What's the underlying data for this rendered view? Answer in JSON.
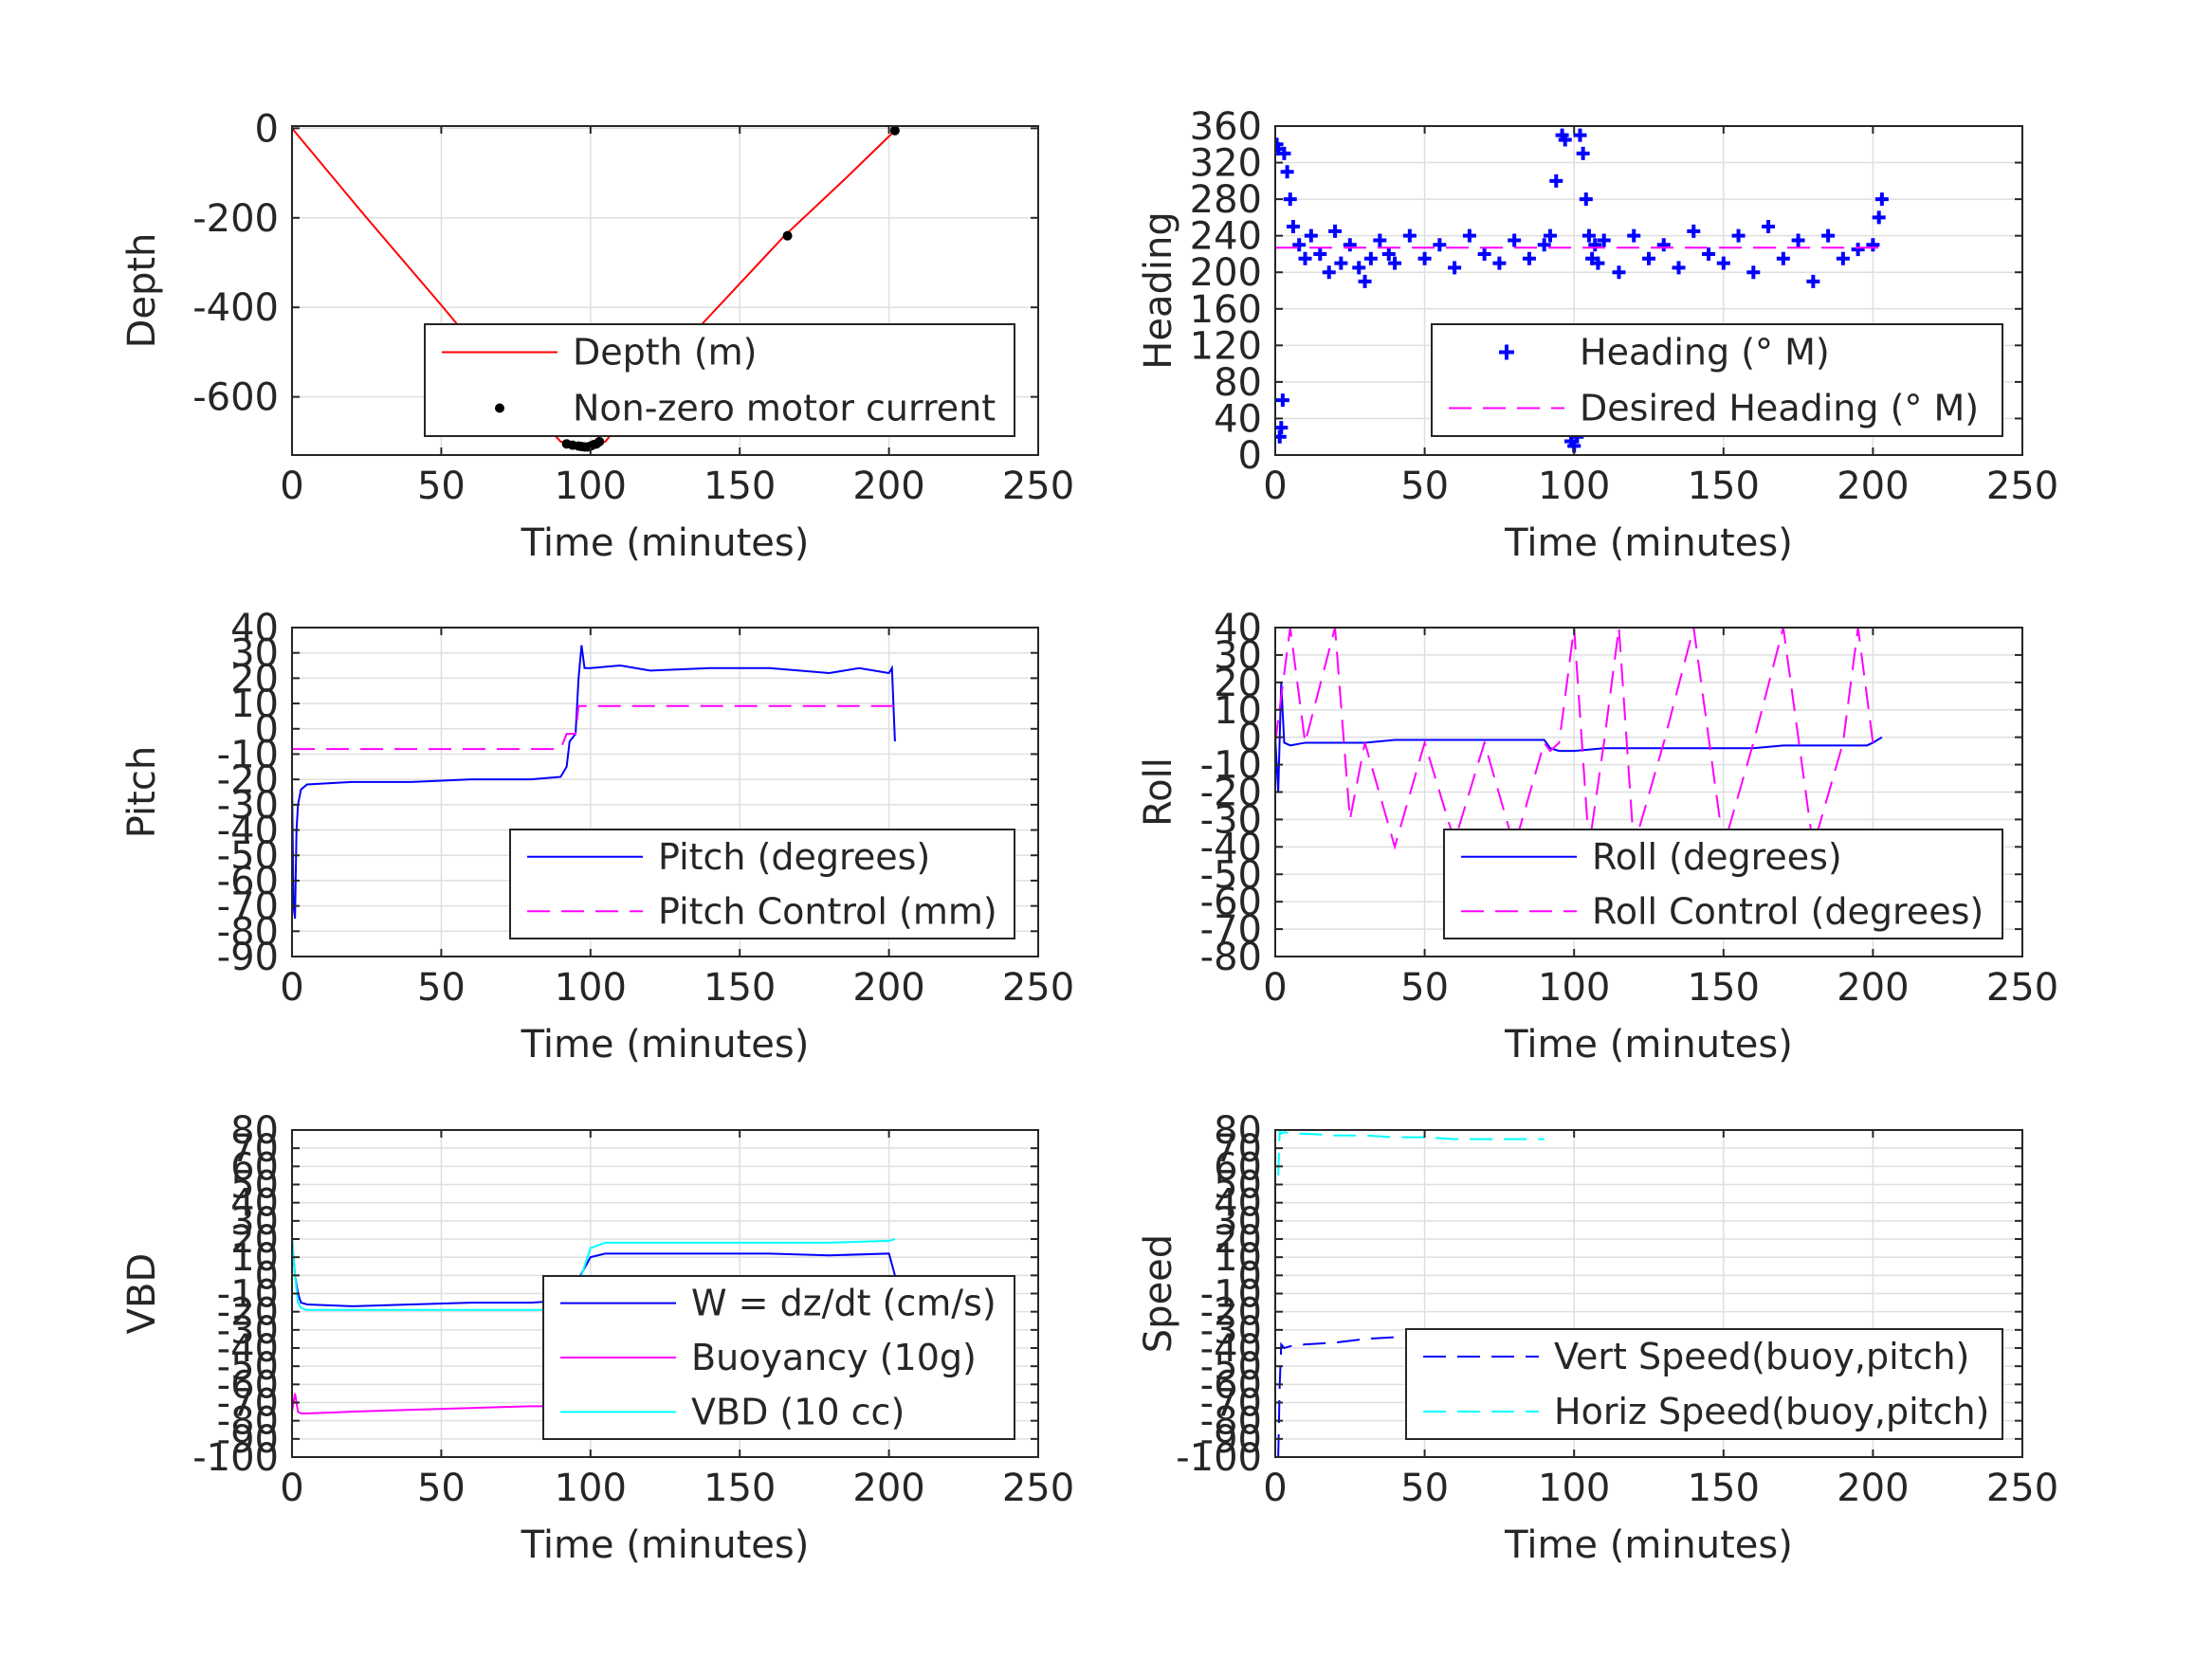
{
  "figure": {
    "background": "#ffffff",
    "axis_color": "#262626",
    "grid_color": "#dfdfdf"
  },
  "chart_data": [
    {
      "id": "depth",
      "type": "line",
      "xlabel": "Time (minutes)",
      "ylabel": "Depth",
      "xlim": [
        0,
        250
      ],
      "ylim": [
        -730,
        5
      ],
      "xticks": [
        0,
        50,
        100,
        150,
        200,
        250
      ],
      "yticks": [
        0,
        -200,
        -400,
        -600
      ],
      "legend_location": "bottom-right",
      "series": [
        {
          "name": "Depth (m)",
          "color": "#ff0000",
          "style": "solid",
          "x": [
            0,
            25,
            50,
            70,
            90,
            95,
            100,
            105,
            130,
            165,
            185,
            202
          ],
          "y": [
            0,
            -200,
            -395,
            -555,
            -700,
            -710,
            -712,
            -700,
            -490,
            -240,
            -115,
            -5
          ]
        },
        {
          "name": "Non-zero motor current",
          "color": "#000000",
          "style": "dots",
          "x": [
            92,
            94,
            96,
            97,
            98,
            99,
            100,
            101,
            102,
            103,
            166,
            202
          ],
          "y": [
            -705,
            -708,
            -710,
            -711,
            -712,
            -712,
            -710,
            -707,
            -705,
            -700,
            -240,
            -5
          ]
        }
      ]
    },
    {
      "id": "heading",
      "type": "scatter",
      "xlabel": "Time (minutes)",
      "ylabel": "Heading",
      "xlim": [
        0,
        250
      ],
      "ylim": [
        0,
        360
      ],
      "xticks": [
        0,
        50,
        100,
        150,
        200,
        250
      ],
      "yticks": [
        0,
        40,
        80,
        120,
        160,
        200,
        240,
        280,
        320,
        360
      ],
      "legend_location": "bottom-right",
      "series": [
        {
          "name": "Heading (° M)",
          "color": "#0000ff",
          "style": "plus",
          "x": [
            0.5,
            1,
            1.5,
            2,
            2.5,
            3,
            4,
            5,
            6,
            8,
            10,
            12,
            15,
            18,
            20,
            22,
            25,
            28,
            30,
            32,
            35,
            38,
            40,
            45,
            50,
            55,
            60,
            65,
            70,
            75,
            80,
            85,
            90,
            92,
            94,
            96,
            97,
            98,
            99,
            100,
            101,
            102,
            103,
            104,
            105,
            106,
            107,
            108,
            110,
            115,
            120,
            125,
            130,
            135,
            140,
            145,
            150,
            155,
            160,
            165,
            170,
            175,
            180,
            185,
            190,
            195,
            200,
            202,
            203
          ],
          "y": [
            340,
            335,
            20,
            30,
            60,
            330,
            310,
            280,
            250,
            230,
            215,
            240,
            220,
            200,
            245,
            210,
            230,
            205,
            190,
            215,
            235,
            220,
            210,
            240,
            215,
            230,
            205,
            240,
            220,
            210,
            235,
            215,
            230,
            240,
            300,
            350,
            345,
            30,
            15,
            10,
            20,
            350,
            330,
            280,
            240,
            215,
            230,
            210,
            235,
            200,
            240,
            215,
            230,
            205,
            245,
            220,
            210,
            240,
            200,
            250,
            215,
            235,
            190,
            240,
            215,
            225,
            230,
            260,
            280
          ]
        },
        {
          "name": "Desired Heading (° M)",
          "color": "#ff00ff",
          "style": "dashed",
          "x": [
            0,
            203
          ],
          "y": [
            227,
            227
          ]
        }
      ]
    },
    {
      "id": "pitch",
      "type": "line",
      "xlabel": "Time (minutes)",
      "ylabel": "Pitch",
      "xlim": [
        0,
        250
      ],
      "ylim": [
        -90,
        40
      ],
      "xticks": [
        0,
        50,
        100,
        150,
        200,
        250
      ],
      "yticks": [
        40,
        30,
        20,
        10,
        0,
        -10,
        -20,
        -30,
        -40,
        -50,
        -60,
        -70,
        -80,
        -90
      ],
      "legend_location": "bottom-right",
      "series": [
        {
          "name": "Pitch (degrees)",
          "color": "#0000ff",
          "style": "solid",
          "x": [
            0,
            0.5,
            1,
            1.5,
            2,
            3,
            5,
            20,
            40,
            60,
            80,
            90,
            92,
            93,
            95,
            96,
            97,
            98,
            100,
            110,
            120,
            140,
            160,
            180,
            190,
            200,
            201,
            202
          ],
          "y": [
            -20,
            -70,
            -75,
            -40,
            -30,
            -24,
            -22,
            -21,
            -21,
            -20,
            -20,
            -19,
            -15,
            -5,
            -2,
            20,
            33,
            24,
            24,
            25,
            23,
            24,
            24,
            22,
            24,
            22,
            24,
            -5
          ]
        },
        {
          "name": "Pitch Control (mm)",
          "color": "#ff00ff",
          "style": "dashed",
          "x": [
            0,
            90,
            92,
            95,
            96,
            200,
            202
          ],
          "y": [
            -8,
            -8,
            -2,
            -2,
            9,
            9,
            9
          ]
        }
      ]
    },
    {
      "id": "roll",
      "type": "line",
      "xlabel": "Time (minutes)",
      "ylabel": "Roll",
      "xlim": [
        0,
        250
      ],
      "ylim": [
        -80,
        40
      ],
      "xticks": [
        0,
        50,
        100,
        150,
        200,
        250
      ],
      "yticks": [
        40,
        30,
        20,
        10,
        0,
        -10,
        -20,
        -30,
        -40,
        -50,
        -60,
        -70,
        -80
      ],
      "legend_location": "bottom-right",
      "series": [
        {
          "name": "Roll (degrees)",
          "color": "#0000ff",
          "style": "solid",
          "x": [
            0,
            1,
            2,
            3,
            5,
            10,
            20,
            30,
            40,
            50,
            60,
            70,
            80,
            90,
            92,
            95,
            100,
            110,
            120,
            130,
            140,
            150,
            160,
            170,
            180,
            190,
            198,
            200,
            203
          ],
          "y": [
            0,
            -20,
            20,
            -2,
            -3,
            -2,
            -2,
            -2,
            -1,
            -1,
            -1,
            -1,
            -1,
            -1,
            -4,
            -5,
            -5,
            -4,
            -4,
            -4,
            -4,
            -4,
            -4,
            -3,
            -3,
            -3,
            -3,
            -2,
            0
          ]
        },
        {
          "name": "Roll Control (degrees)",
          "color": "#ff00ff",
          "style": "dashed",
          "x": [
            0,
            5,
            10,
            20,
            25,
            30,
            40,
            50,
            60,
            70,
            80,
            90,
            92,
            95,
            100,
            105,
            110,
            115,
            120,
            130,
            140,
            150,
            160,
            170,
            180,
            190,
            195,
            200
          ],
          "y": [
            -2,
            40,
            -2,
            40,
            -30,
            -2,
            -40,
            -2,
            -38,
            -2,
            -40,
            -2,
            -5,
            -2,
            40,
            -40,
            -2,
            40,
            -40,
            -2,
            40,
            -40,
            -2,
            40,
            -40,
            -2,
            40,
            -2
          ]
        }
      ]
    },
    {
      "id": "vbd",
      "type": "line",
      "xlabel": "Time (minutes)",
      "ylabel": "VBD",
      "xlim": [
        0,
        250
      ],
      "ylim": [
        -100,
        80
      ],
      "xticks": [
        0,
        50,
        100,
        150,
        200,
        250
      ],
      "yticks": [
        80,
        70,
        60,
        50,
        40,
        30,
        20,
        10,
        0,
        -10,
        -20,
        -30,
        -40,
        -50,
        -60,
        -70,
        -80,
        -90,
        -100
      ],
      "legend_location": "bottom-right",
      "series": [
        {
          "name": "W = dz/dt (cm/s)",
          "color": "#0000ff",
          "style": "solid",
          "x": [
            0,
            1,
            2,
            3,
            5,
            20,
            40,
            60,
            80,
            90,
            92,
            95,
            100,
            105,
            120,
            140,
            160,
            180,
            200,
            202
          ],
          "y": [
            20,
            0,
            -10,
            -15,
            -16,
            -17,
            -16,
            -15,
            -15,
            -14,
            -12,
            -5,
            10,
            12,
            12,
            12,
            12,
            11,
            12,
            0
          ]
        },
        {
          "name": "Buoyancy (10g)",
          "color": "#ff00ff",
          "style": "solid",
          "x": [
            0,
            1,
            2,
            3,
            5,
            20,
            40,
            60,
            80,
            92
          ],
          "y": [
            -75,
            -65,
            -75,
            -76,
            -76,
            -75,
            -74,
            -73,
            -72,
            -72
          ]
        },
        {
          "name": "VBD (10 cc)",
          "color": "#00ffff",
          "style": "solid",
          "x": [
            0,
            1,
            2,
            3,
            5,
            20,
            40,
            60,
            80,
            92,
            95,
            100,
            105,
            120,
            140,
            160,
            180,
            200,
            202
          ],
          "y": [
            20,
            0,
            -15,
            -18,
            -19,
            -19,
            -19,
            -19,
            -19,
            -19,
            -10,
            15,
            18,
            18,
            18,
            18,
            18,
            19,
            20
          ]
        }
      ]
    },
    {
      "id": "speed",
      "type": "line",
      "xlabel": "Time (minutes)",
      "ylabel": "Speed",
      "xlim": [
        0,
        250
      ],
      "ylim": [
        -100,
        80
      ],
      "xticks": [
        0,
        50,
        100,
        150,
        200,
        250
      ],
      "yticks": [
        80,
        70,
        60,
        50,
        40,
        30,
        20,
        10,
        0,
        -10,
        -20,
        -30,
        -40,
        -50,
        -60,
        -70,
        -80,
        -90,
        -100
      ],
      "legend_location": "bottom-right",
      "series": [
        {
          "name": "Vert Speed(buoy,pitch)",
          "color": "#0000ff",
          "style": "dashed",
          "x": [
            1,
            1.5,
            2,
            3,
            5,
            10,
            20,
            30,
            40,
            50,
            60,
            70,
            80,
            90
          ],
          "y": [
            -100,
            -60,
            -38,
            -40,
            -39,
            -38,
            -37,
            -35,
            -34,
            -33,
            -33,
            -32,
            -32,
            -32
          ]
        },
        {
          "name": "Horiz Speed(buoy,pitch)",
          "color": "#00ffff",
          "style": "dashed",
          "x": [
            1,
            1.5,
            2,
            3,
            5,
            10,
            20,
            30,
            40,
            50,
            60,
            70,
            80,
            90
          ],
          "y": [
            55,
            80,
            78,
            79,
            78,
            78,
            77,
            77,
            76,
            76,
            75,
            75,
            75,
            75
          ]
        }
      ]
    }
  ]
}
